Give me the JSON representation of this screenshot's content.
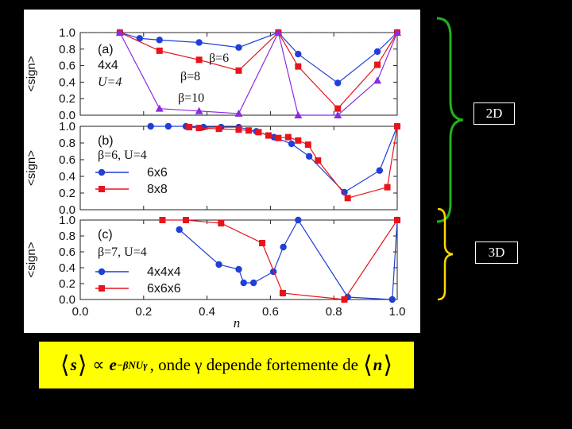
{
  "dimension_labels": {
    "two_d": "2D",
    "three_d": "3D"
  },
  "formula": {
    "lhs_var": "s",
    "prop": "∝",
    "base": "e",
    "exponent": "−βNUγ",
    "text": ", onde γ depende fortemente de",
    "rhs_var": "n"
  },
  "colors": {
    "blue": "#1f3fd6",
    "red": "#e8141c",
    "purple": "#8a2be2",
    "green_brace": "#1fb11f",
    "yellow_brace": "#ffd700",
    "formula_bg": "#ffff00"
  },
  "chart_data": {
    "type": "line",
    "xlabel": "n",
    "ylabel": "<sign>",
    "x_ticks": [
      "0.0",
      "0.2",
      "0.4",
      "0.6",
      "0.8",
      "1.0"
    ],
    "xlim": [
      0,
      1.0
    ],
    "panels": [
      {
        "id": "a",
        "ylim": [
          0,
          1.0
        ],
        "y_ticks": [
          "0.0",
          "0.2",
          "0.4",
          "0.6",
          "0.8",
          "1.0"
        ],
        "reference_line": 1.0,
        "label_lines": [
          "(a)",
          "4x4",
          "U=4"
        ],
        "series": [
          {
            "name": "β=6",
            "color": "#1f3fd6",
            "marker": "circle",
            "x": [
              0.125,
              0.1875,
              0.25,
              0.375,
              0.5,
              0.625,
              0.6875,
              0.8125,
              0.9375,
              1.0
            ],
            "y": [
              1.0,
              0.93,
              0.91,
              0.88,
              0.82,
              1.0,
              0.74,
              0.39,
              0.77,
              1.0
            ]
          },
          {
            "name": "β=8",
            "color": "#e8141c",
            "marker": "square",
            "x": [
              0.125,
              0.25,
              0.375,
              0.5,
              0.625,
              0.6875,
              0.8125,
              0.9375,
              1.0
            ],
            "y": [
              1.0,
              0.78,
              0.67,
              0.54,
              1.0,
              0.59,
              0.08,
              0.61,
              1.0
            ]
          },
          {
            "name": "β=10",
            "color": "#8a2be2",
            "marker": "triangle",
            "x": [
              0.125,
              0.25,
              0.375,
              0.5,
              0.625,
              0.6875,
              0.8125,
              0.9375,
              1.0
            ],
            "y": [
              1.0,
              0.08,
              0.05,
              0.02,
              1.0,
              0.0,
              0.0,
              0.42,
              1.0
            ]
          }
        ],
        "inline_labels": [
          "β=6",
          "β=8",
          "β=10"
        ]
      },
      {
        "id": "b",
        "ylim": [
          0,
          1.0
        ],
        "y_ticks": [
          "0.0",
          "0.2",
          "0.4",
          "0.6",
          "0.8",
          "1.0"
        ],
        "label_lines": [
          "(b)",
          "β=6, U=4"
        ],
        "series": [
          {
            "name": "6x6",
            "color": "#1f3fd6",
            "marker": "circle",
            "x": [
              0.2222,
              0.2778,
              0.3333,
              0.3889,
              0.4444,
              0.5,
              0.5556,
              0.6111,
              0.6667,
              0.7222,
              0.8333,
              0.9444,
              1.0
            ],
            "y": [
              1.0,
              1.0,
              1.0,
              0.99,
              0.99,
              0.99,
              0.94,
              0.87,
              0.79,
              0.64,
              0.21,
              0.47,
              1.0
            ]
          },
          {
            "name": "8x8",
            "color": "#e8141c",
            "marker": "square",
            "x": [
              0.3438,
              0.375,
              0.4375,
              0.5,
              0.5313,
              0.5625,
              0.5938,
              0.625,
              0.6563,
              0.6875,
              0.7188,
              0.75,
              0.8438,
              0.9688,
              1.0
            ],
            "y": [
              0.99,
              0.98,
              0.97,
              0.96,
              0.95,
              0.93,
              0.89,
              0.86,
              0.87,
              0.83,
              0.78,
              0.59,
              0.14,
              0.27,
              1.0
            ]
          }
        ]
      },
      {
        "id": "c",
        "ylim": [
          0,
          1.0
        ],
        "y_ticks": [
          "0.0",
          "0.2",
          "0.4",
          "0.6",
          "0.8",
          "1.0"
        ],
        "label_lines": [
          "(c)",
          "β=7, U=4"
        ],
        "series": [
          {
            "name": "4x4x4",
            "color": "#1f3fd6",
            "marker": "circle",
            "x": [
              0.3125,
              0.4375,
              0.5,
              0.5156,
              0.5469,
              0.6094,
              0.6406,
              0.6875,
              0.8438,
              0.9844,
              1.0
            ],
            "y": [
              0.88,
              0.44,
              0.38,
              0.21,
              0.21,
              0.35,
              0.66,
              1.0,
              0.03,
              0.0,
              1.0
            ]
          },
          {
            "name": "6x6x6",
            "color": "#e8141c",
            "marker": "square",
            "x": [
              0.2593,
              0.3333,
              0.4444,
              0.5741,
              0.6389,
              0.8333,
              1.0
            ],
            "y": [
              1.0,
              1.0,
              0.96,
              0.71,
              0.08,
              0.0,
              1.0
            ]
          }
        ]
      }
    ]
  }
}
